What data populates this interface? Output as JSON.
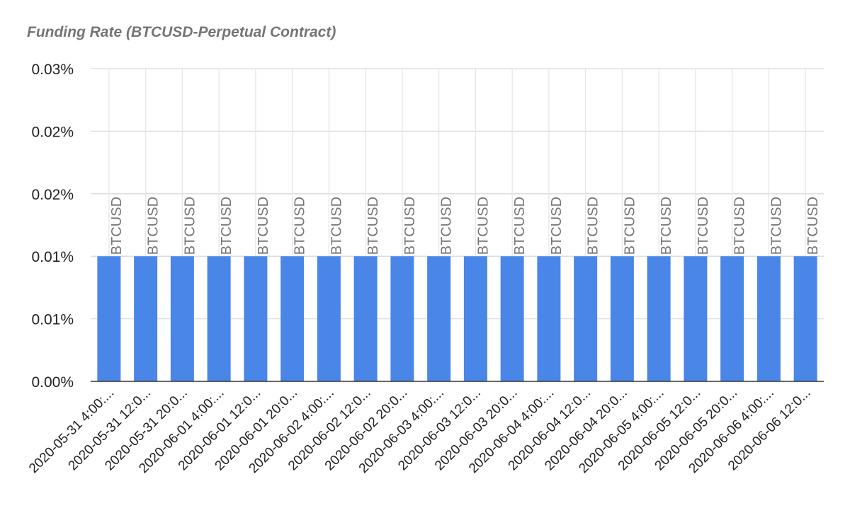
{
  "chart_data": {
    "type": "bar",
    "title": "Funding Rate (BTCUSD-Perpetual Contract)",
    "xlabel": "",
    "ylabel": "",
    "categories": [
      "2020-05-31 4:00:...",
      "2020-05-31 12:0...",
      "2020-05-31 20:0...",
      "2020-06-01 4:00:...",
      "2020-06-01 12:0...",
      "2020-06-01 20:0...",
      "2020-06-02 4:00:...",
      "2020-06-02 12:0...",
      "2020-06-02 20:0...",
      "2020-06-03 4:00:...",
      "2020-06-03 12:0...",
      "2020-06-03 20:0...",
      "2020-06-04 4:00:...",
      "2020-06-04 12:0...",
      "2020-06-04 20:0...",
      "2020-06-05 4:00:...",
      "2020-06-05 12:0...",
      "2020-06-05 20:0...",
      "2020-06-06 4:00:...",
      "2020-06-06 12:0..."
    ],
    "series": [
      {
        "values": [
          0.01,
          0.01,
          0.01,
          0.01,
          0.01,
          0.01,
          0.01,
          0.01,
          0.01,
          0.01,
          0.01,
          0.01,
          0.01,
          0.01,
          0.01,
          0.01,
          0.01,
          0.01,
          0.01,
          0.01
        ],
        "data_label": "BTCUSD",
        "color": "#4a86e8"
      }
    ],
    "y_ticks": [
      {
        "value": 0,
        "label": "0.00%"
      },
      {
        "value": 0.005,
        "label": "0.01%"
      },
      {
        "value": 0.01,
        "label": "0.01%"
      },
      {
        "value": 0.015,
        "label": "0.02%"
      },
      {
        "value": 0.02,
        "label": "0.02%"
      },
      {
        "value": 0.025,
        "label": "0.03%"
      }
    ],
    "ylim": [
      0,
      0.025
    ],
    "grid": true,
    "legend": "none",
    "colors": {
      "bar": "#4a86e8",
      "grid": "#d9d9d9",
      "axis": "#333333",
      "title": "#757575",
      "data_label": "#757575"
    }
  }
}
